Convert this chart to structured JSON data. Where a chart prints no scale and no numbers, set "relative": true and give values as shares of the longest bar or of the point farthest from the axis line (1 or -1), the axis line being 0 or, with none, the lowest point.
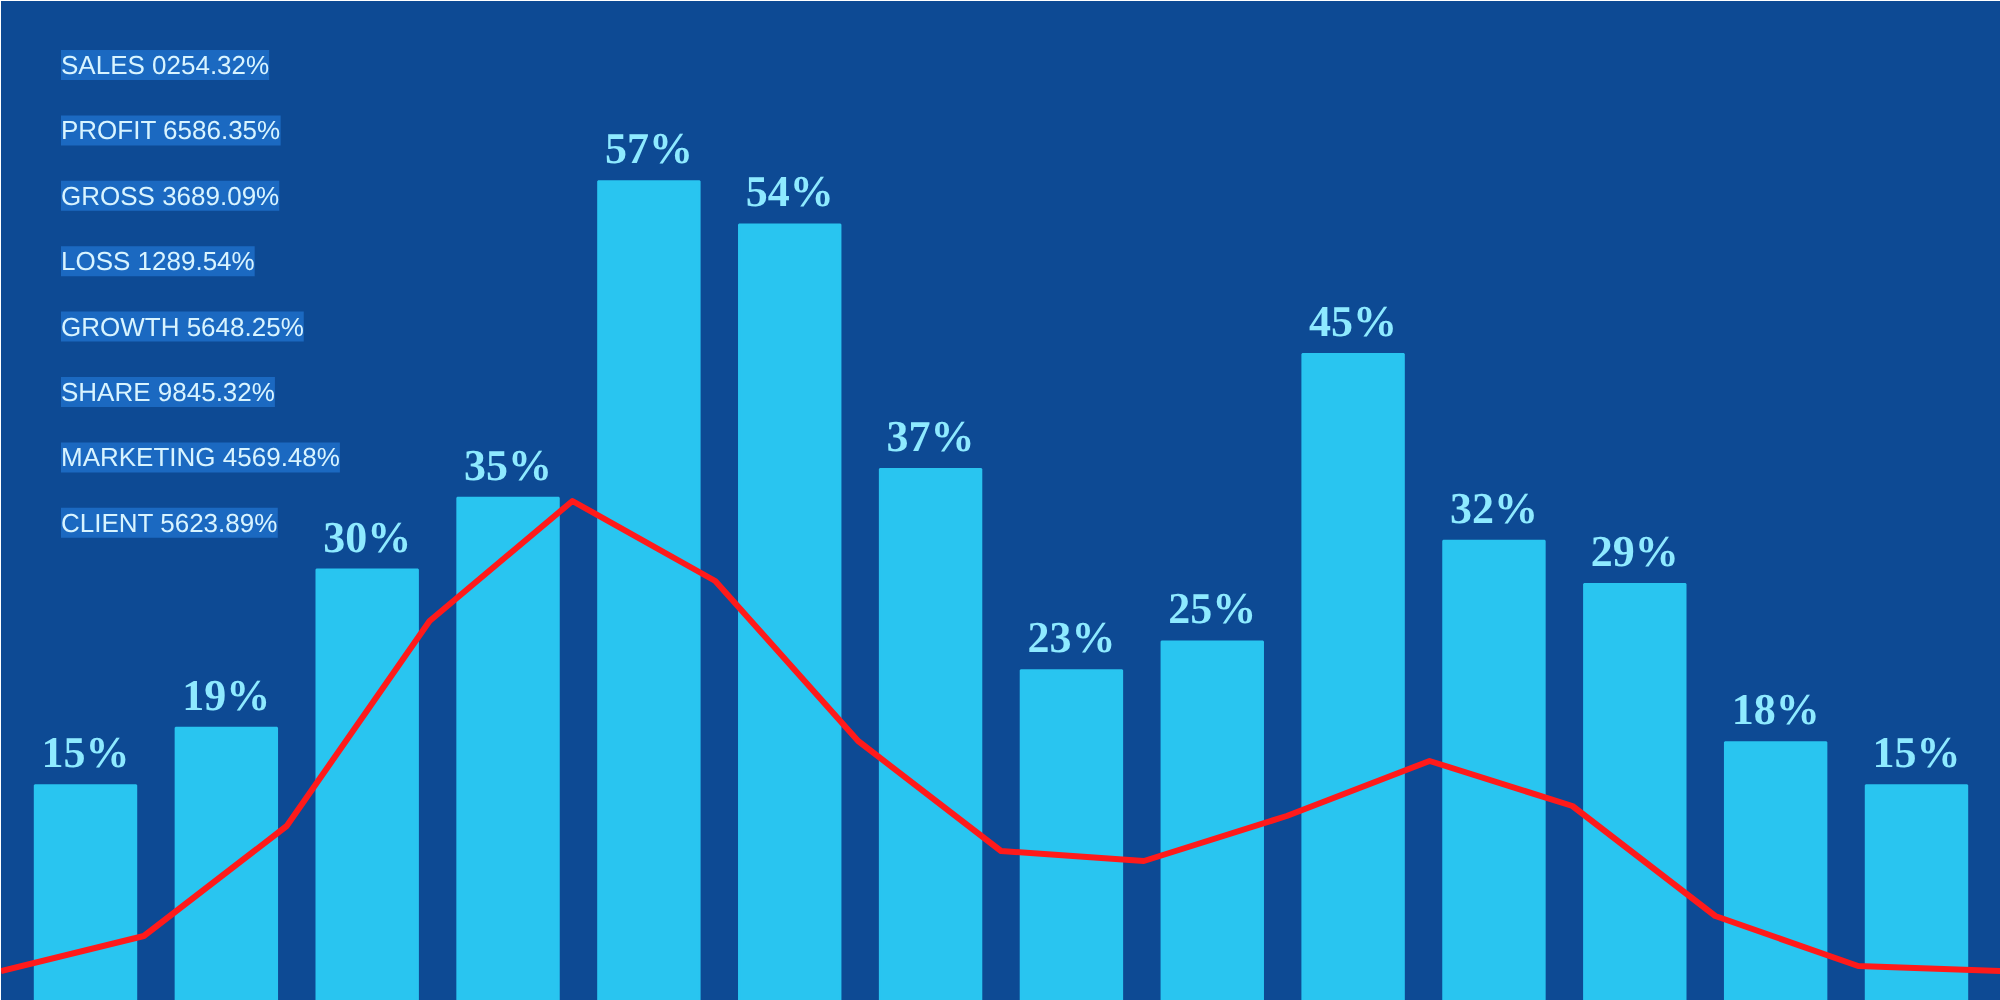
{
  "chart_data": [
    {
      "type": "bar",
      "categories": [
        null,
        null,
        null,
        null,
        null,
        null,
        null,
        null,
        null,
        null,
        null,
        null,
        null,
        null
      ],
      "series": [
        {
          "color": "#29c5f0",
          "values": [
            15,
            19,
            30,
            35,
            57,
            54,
            37,
            23,
            25,
            45,
            32,
            29,
            18,
            15
          ],
          "value_labels": [
            "15%",
            "19%",
            "30%",
            "35%",
            "57%",
            "54%",
            "37%",
            "23%",
            "25%",
            "45%",
            "32%",
            "29%",
            "18%",
            "15%"
          ]
        }
      ],
      "grid": false,
      "tick_labels": false,
      "annotations": [
        "SALES 0254.32%",
        "PROFIT 6586.35%",
        "GROSS 3689.09%",
        "LOSS 1289.54%",
        "GROWTH 5648.25%",
        "SHARE 9845.32%",
        "MARKETING 4569.48%",
        "CLIENT 5623.89%"
      ]
    },
    {
      "type": "line",
      "relative": true,
      "categories": [
        null,
        null,
        null,
        null,
        null,
        null,
        null,
        null,
        null,
        null,
        null,
        null,
        null,
        null,
        null
      ],
      "series": [
        {
          "color": "#ff1a1a",
          "values": [
            0.06,
            0.13,
            0.35,
            0.76,
            1,
            0.84,
            0.52,
            0.3,
            0.28,
            0.37,
            0.48,
            0.39,
            0.17,
            0.07,
            0.06
          ]
        }
      ]
    }
  ]
}
